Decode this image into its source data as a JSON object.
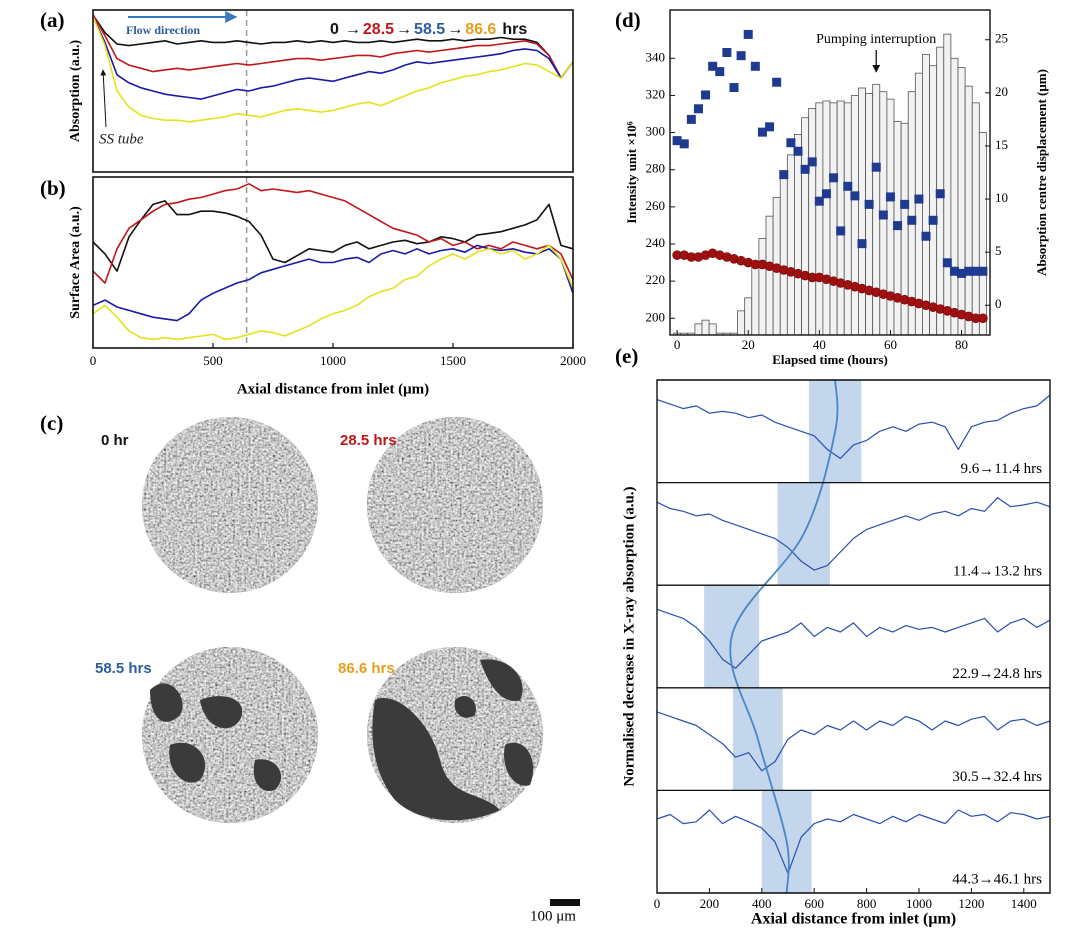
{
  "chart_data": [
    {
      "type": "line",
      "panel_label": "(a)",
      "ylabel": "Absorption (a.u.)",
      "flow_label": "Flow direction",
      "annotation": "SS tube",
      "legend_arrow": "→",
      "legend_unit": "hrs",
      "xlim": [
        0,
        2000
      ],
      "ylim": [
        0,
        1
      ],
      "marker_x": 640,
      "x": [
        0,
        50,
        100,
        150,
        200,
        250,
        300,
        350,
        400,
        450,
        500,
        550,
        600,
        650,
        700,
        750,
        800,
        850,
        900,
        950,
        1000,
        1050,
        1100,
        1150,
        1200,
        1250,
        1300,
        1350,
        1400,
        1450,
        1500,
        1550,
        1600,
        1650,
        1700,
        1750,
        1800,
        1850,
        1900,
        1950,
        2000
      ],
      "series": [
        {
          "name": "0",
          "color": "#111111",
          "legend_color": "#111111",
          "values": [
            0.97,
            0.86,
            0.79,
            0.78,
            0.79,
            0.8,
            0.81,
            0.79,
            0.8,
            0.81,
            0.8,
            0.8,
            0.81,
            0.8,
            0.79,
            0.8,
            0.8,
            0.81,
            0.8,
            0.81,
            0.8,
            0.81,
            0.8,
            0.8,
            0.81,
            0.8,
            0.81,
            0.82,
            0.81,
            0.81,
            0.82,
            0.81,
            0.82,
            0.82,
            0.83,
            0.82,
            0.82,
            0.8,
            0.72,
            0.58,
            0.68
          ]
        },
        {
          "name": "28.5",
          "color": "#c0171c",
          "legend_color": "#c0171c",
          "values": [
            0.97,
            0.84,
            0.7,
            0.66,
            0.64,
            0.62,
            0.63,
            0.64,
            0.63,
            0.64,
            0.65,
            0.66,
            0.67,
            0.66,
            0.67,
            0.68,
            0.69,
            0.7,
            0.7,
            0.69,
            0.7,
            0.71,
            0.72,
            0.72,
            0.71,
            0.73,
            0.74,
            0.75,
            0.74,
            0.75,
            0.76,
            0.77,
            0.78,
            0.78,
            0.79,
            0.8,
            0.81,
            0.79,
            0.72,
            0.58,
            0.68
          ]
        },
        {
          "name": "58.5",
          "color": "#1a1aa8",
          "legend_color": "#2e5c9e",
          "values": [
            0.96,
            0.8,
            0.6,
            0.55,
            0.52,
            0.5,
            0.48,
            0.47,
            0.46,
            0.45,
            0.47,
            0.49,
            0.51,
            0.5,
            0.52,
            0.53,
            0.55,
            0.57,
            0.58,
            0.57,
            0.56,
            0.58,
            0.6,
            0.62,
            0.61,
            0.63,
            0.66,
            0.68,
            0.67,
            0.68,
            0.69,
            0.7,
            0.71,
            0.72,
            0.73,
            0.75,
            0.76,
            0.75,
            0.7,
            0.58,
            0.68
          ]
        },
        {
          "name": "86.6",
          "color": "#e3e31c",
          "legend_color": "#e3a020",
          "values": [
            0.96,
            0.78,
            0.5,
            0.4,
            0.35,
            0.33,
            0.32,
            0.32,
            0.31,
            0.32,
            0.33,
            0.34,
            0.36,
            0.35,
            0.34,
            0.36,
            0.38,
            0.39,
            0.38,
            0.37,
            0.38,
            0.4,
            0.42,
            0.43,
            0.41,
            0.44,
            0.47,
            0.5,
            0.52,
            0.55,
            0.57,
            0.59,
            0.6,
            0.62,
            0.63,
            0.65,
            0.67,
            0.66,
            0.62,
            0.58,
            0.68
          ]
        }
      ]
    },
    {
      "type": "line",
      "panel_label": "(b)",
      "ylabel": "Surface Area (a.u.)",
      "xlabel": "Axial distance from inlet (μm)",
      "xlim": [
        0,
        2000
      ],
      "xticks": [
        0,
        500,
        1000,
        1500,
        2000
      ],
      "ylim": [
        0,
        1
      ],
      "marker_x": 640,
      "x": [
        0,
        50,
        100,
        150,
        200,
        250,
        300,
        350,
        400,
        450,
        500,
        550,
        600,
        650,
        700,
        750,
        800,
        850,
        900,
        950,
        1000,
        1050,
        1100,
        1150,
        1200,
        1250,
        1300,
        1350,
        1400,
        1450,
        1500,
        1550,
        1600,
        1650,
        1700,
        1750,
        1800,
        1850,
        1900,
        1950,
        2000
      ],
      "series": [
        {
          "color": "#111111",
          "values": [
            0.62,
            0.55,
            0.45,
            0.65,
            0.75,
            0.84,
            0.86,
            0.78,
            0.78,
            0.8,
            0.8,
            0.79,
            0.77,
            0.74,
            0.66,
            0.52,
            0.5,
            0.54,
            0.58,
            0.57,
            0.56,
            0.6,
            0.62,
            0.58,
            0.6,
            0.62,
            0.63,
            0.61,
            0.62,
            0.65,
            0.64,
            0.62,
            0.66,
            0.67,
            0.68,
            0.7,
            0.72,
            0.75,
            0.84,
            0.6,
            0.58
          ]
        },
        {
          "color": "#c0171c",
          "values": [
            0.45,
            0.38,
            0.58,
            0.7,
            0.75,
            0.8,
            0.84,
            0.85,
            0.87,
            0.88,
            0.9,
            0.92,
            0.93,
            0.96,
            0.92,
            0.93,
            0.92,
            0.91,
            0.92,
            0.9,
            0.88,
            0.86,
            0.82,
            0.78,
            0.74,
            0.7,
            0.68,
            0.66,
            0.62,
            0.64,
            0.6,
            0.62,
            0.58,
            0.6,
            0.58,
            0.62,
            0.6,
            0.58,
            0.6,
            0.55,
            0.4
          ]
        },
        {
          "color": "#1a1aa8",
          "values": [
            0.25,
            0.28,
            0.24,
            0.22,
            0.2,
            0.18,
            0.17,
            0.16,
            0.2,
            0.28,
            0.32,
            0.35,
            0.38,
            0.4,
            0.44,
            0.46,
            0.48,
            0.5,
            0.52,
            0.5,
            0.5,
            0.52,
            0.53,
            0.5,
            0.55,
            0.57,
            0.55,
            0.58,
            0.55,
            0.57,
            0.58,
            0.56,
            0.6,
            0.58,
            0.57,
            0.58,
            0.56,
            0.55,
            0.58,
            0.52,
            0.32
          ]
        },
        {
          "color": "#e3e31c",
          "values": [
            0.2,
            0.25,
            0.18,
            0.1,
            0.06,
            0.05,
            0.06,
            0.05,
            0.06,
            0.07,
            0.08,
            0.05,
            0.06,
            0.08,
            0.1,
            0.09,
            0.07,
            0.1,
            0.13,
            0.17,
            0.2,
            0.22,
            0.25,
            0.3,
            0.33,
            0.35,
            0.4,
            0.42,
            0.48,
            0.52,
            0.55,
            0.52,
            0.56,
            0.58,
            0.55,
            0.57,
            0.52,
            0.55,
            0.6,
            0.52,
            0.35
          ]
        }
      ]
    },
    {
      "type": "combo",
      "panel_label": "(d)",
      "xlabel": "Elapsed time (hours)",
      "ylabel": "Intensity unit ×10⁶",
      "y2label": "Absorption centre displacement (μm)",
      "annotation": "Pumping interruption",
      "annotation_x": 56,
      "xlim": [
        -2,
        88
      ],
      "xticks": [
        0,
        20,
        40,
        60,
        80
      ],
      "ylim": [
        191,
        366
      ],
      "yticks": [
        200,
        220,
        240,
        260,
        280,
        300,
        320,
        340
      ],
      "y2lim": [
        -2.8,
        27.8
      ],
      "y2ticks": [
        0,
        5,
        10,
        15,
        20,
        25
      ],
      "series": [
        {
          "kind": "bar",
          "color": "#f2f2f2",
          "x": [
            0,
            2,
            4,
            6,
            8,
            10,
            12,
            14,
            16,
            18,
            20,
            22,
            24,
            26,
            28,
            30,
            32,
            34,
            36,
            38,
            40,
            42,
            44,
            46,
            48,
            50,
            52,
            54,
            56,
            58,
            60,
            62,
            64,
            66,
            68,
            70,
            72,
            74,
            76,
            78,
            80,
            82,
            84,
            86
          ],
          "values": [
            192,
            192,
            192,
            197,
            199,
            197,
            192,
            192,
            192,
            204,
            211,
            230,
            243,
            255,
            265,
            277,
            288,
            299,
            308,
            313,
            316,
            317,
            316,
            317,
            316,
            320,
            324,
            321,
            326,
            322,
            318,
            306,
            305,
            322,
            332,
            342,
            336,
            346,
            353,
            340,
            335,
            325,
            316,
            300
          ]
        },
        {
          "kind": "circle",
          "color": "#a01010",
          "x": [
            0,
            2,
            4,
            6,
            8,
            10,
            12,
            14,
            16,
            18,
            20,
            22,
            24,
            26,
            28,
            30,
            32,
            34,
            36,
            38,
            40,
            42,
            44,
            46,
            48,
            50,
            52,
            54,
            56,
            58,
            60,
            62,
            64,
            66,
            68,
            70,
            72,
            74,
            76,
            78,
            80,
            82,
            84,
            86
          ],
          "values": [
            234,
            234,
            233,
            233,
            234,
            235,
            234,
            233,
            232,
            231,
            230,
            229,
            229,
            228,
            227,
            226,
            225,
            224,
            223,
            222,
            222,
            221,
            220,
            219,
            218,
            217,
            216,
            215,
            214,
            213,
            212,
            211,
            210,
            209,
            208,
            207,
            206,
            205,
            204,
            203,
            202,
            201,
            200,
            200
          ]
        },
        {
          "kind": "square",
          "color": "#1f3a8f",
          "axis": "y2",
          "x": [
            0,
            2,
            4,
            6,
            8,
            10,
            12,
            14,
            16,
            18,
            20,
            22,
            24,
            26,
            28,
            30,
            32,
            34,
            36,
            38,
            40,
            42,
            44,
            46,
            48,
            50,
            52,
            54,
            56,
            58,
            60,
            62,
            64,
            66,
            68,
            70,
            72,
            74,
            76,
            78,
            80,
            82,
            84,
            86
          ],
          "values": [
            15.5,
            15.2,
            17.5,
            18.5,
            19.8,
            22.5,
            22,
            23.8,
            20.5,
            23.5,
            25.5,
            22.5,
            16.3,
            16.8,
            21,
            12.3,
            15.3,
            14.5,
            12.8,
            13.5,
            9.8,
            10.5,
            12,
            7,
            11.2,
            10.3,
            5.8,
            9.5,
            13,
            8.5,
            10.2,
            7.5,
            9.5,
            8,
            10,
            6.5,
            8,
            10.5,
            4,
            3.2,
            3,
            3.2,
            3.2,
            3.2
          ]
        }
      ]
    },
    {
      "type": "stacked_traces",
      "panel_label": "(e)",
      "xlabel": "Axial distance from inlet (μm)",
      "ylabel": "Normalised decrease in X-ray absorption (a.u.)",
      "xlim": [
        0,
        1500
      ],
      "xticks": [
        0,
        200,
        400,
        600,
        800,
        1000,
        1200,
        1400
      ],
      "ylim": [
        0,
        1
      ],
      "color": "#2a4fb0",
      "highlight_color": "#b9cfe8",
      "x": [
        0,
        50,
        100,
        150,
        200,
        250,
        300,
        350,
        400,
        450,
        500,
        550,
        600,
        650,
        700,
        750,
        800,
        850,
        900,
        950,
        1000,
        1050,
        1100,
        1150,
        1200,
        1250,
        1300,
        1350,
        1400,
        1450,
        1500
      ],
      "traces": [
        {
          "label": "9.6→11.4 hrs",
          "highlight": [
            580,
            780
          ],
          "values": [
            0.85,
            0.8,
            0.75,
            0.78,
            0.7,
            0.72,
            0.7,
            0.65,
            0.68,
            0.6,
            0.55,
            0.5,
            0.45,
            0.3,
            0.2,
            0.35,
            0.4,
            0.5,
            0.55,
            0.5,
            0.58,
            0.6,
            0.55,
            0.3,
            0.55,
            0.6,
            0.62,
            0.7,
            0.75,
            0.78,
            0.9
          ]
        },
        {
          "label": "11.4→13.2 hrs",
          "highlight": [
            460,
            660
          ],
          "values": [
            0.85,
            0.78,
            0.75,
            0.7,
            0.72,
            0.65,
            0.6,
            0.55,
            0.5,
            0.45,
            0.35,
            0.2,
            0.1,
            0.15,
            0.3,
            0.45,
            0.55,
            0.6,
            0.65,
            0.7,
            0.65,
            0.72,
            0.75,
            0.7,
            0.78,
            0.75,
            0.9,
            0.8,
            0.82,
            0.85,
            0.8
          ]
        },
        {
          "label": "22.9→24.8 hrs",
          "highlight": [
            180,
            390
          ],
          "values": [
            0.8,
            0.75,
            0.7,
            0.6,
            0.45,
            0.25,
            0.15,
            0.3,
            0.45,
            0.5,
            0.55,
            0.65,
            0.5,
            0.6,
            0.55,
            0.65,
            0.5,
            0.6,
            0.55,
            0.62,
            0.58,
            0.6,
            0.55,
            0.6,
            0.65,
            0.7,
            0.55,
            0.65,
            0.7,
            0.6,
            0.68
          ]
        },
        {
          "label": "30.5→32.4 hrs",
          "highlight": [
            290,
            480
          ],
          "values": [
            0.8,
            0.75,
            0.7,
            0.65,
            0.55,
            0.45,
            0.3,
            0.35,
            0.15,
            0.25,
            0.5,
            0.6,
            0.55,
            0.65,
            0.6,
            0.7,
            0.6,
            0.7,
            0.65,
            0.75,
            0.7,
            0.6,
            0.7,
            0.65,
            0.72,
            0.75,
            0.6,
            0.7,
            0.72,
            0.65,
            0.7
          ]
        },
        {
          "label": "44.3→46.1 hrs",
          "highlight": [
            400,
            590
          ],
          "values": [
            0.75,
            0.8,
            0.7,
            0.72,
            0.85,
            0.7,
            0.78,
            0.72,
            0.65,
            0.5,
            0.15,
            0.55,
            0.7,
            0.75,
            0.72,
            0.8,
            0.75,
            0.7,
            0.78,
            0.72,
            0.8,
            0.75,
            0.7,
            0.85,
            0.78,
            0.8,
            0.72,
            0.82,
            0.8,
            0.75,
            0.78
          ]
        }
      ]
    }
  ],
  "image_panel": {
    "panel_label": "(c)",
    "scale_bar": "100 μm",
    "images": [
      {
        "label": "0 hr",
        "color": "#111111"
      },
      {
        "label": "28.5 hrs",
        "color": "#c0171c"
      },
      {
        "label": "58.5 hrs",
        "color": "#2e5c9e"
      },
      {
        "label": "86.6 hrs",
        "color": "#e3a020"
      }
    ]
  }
}
